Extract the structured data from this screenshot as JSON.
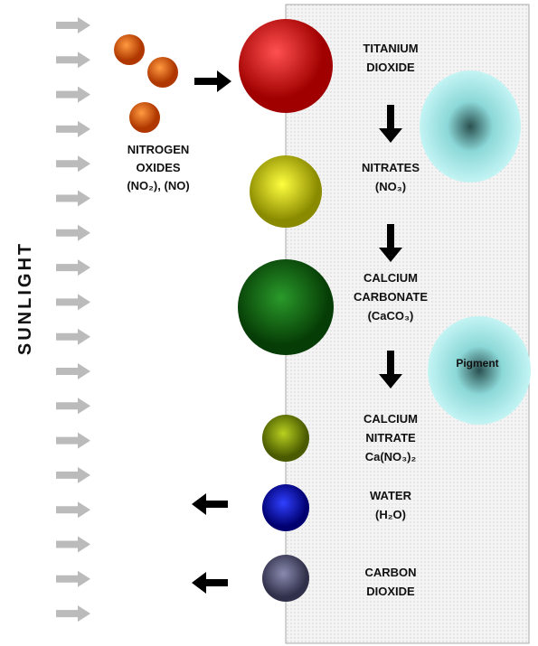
{
  "sunlight": "SUNLIGHT",
  "nitrogen_oxides": [
    "NITROGEN",
    "OXIDES",
    "(NO₂), (NO)"
  ],
  "pigment": "Pigment",
  "nodes": [
    {
      "lines": [
        "TITANIUM",
        "DIOXIDE"
      ]
    },
    {
      "lines": [
        "NITRATES",
        "(NO₃)"
      ]
    },
    {
      "lines": [
        "CALCIUM",
        "CARBONATE",
        "(CaCO₃)"
      ]
    },
    {
      "lines": [
        "CALCIUM",
        "NITRATE",
        "Ca(NO₃)₂"
      ]
    },
    {
      "lines": [
        "WATER",
        "(H₂O)"
      ]
    },
    {
      "lines": [
        "CARBON",
        "DIOXIDE"
      ]
    }
  ]
}
